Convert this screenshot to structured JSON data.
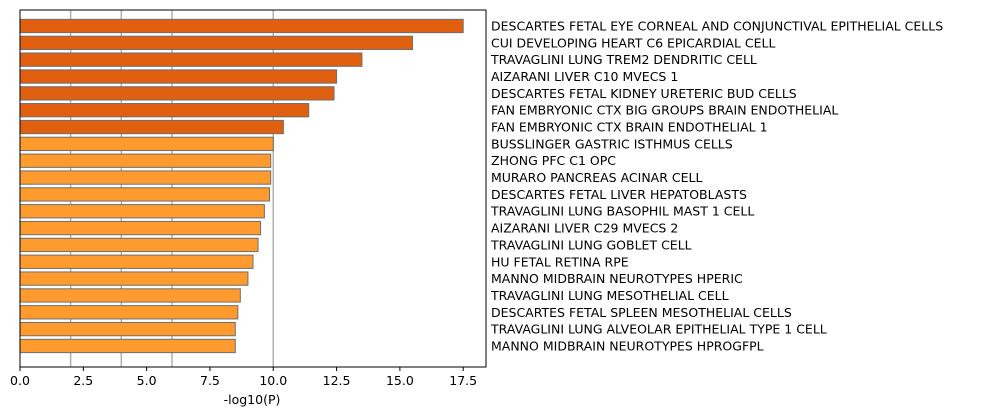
{
  "chart_data": {
    "type": "bar",
    "orientation": "horizontal",
    "xlabel": "-log10(P)",
    "ylabel": "",
    "xlim": [
      0,
      18.4
    ],
    "xticks": [
      0,
      2.5,
      5,
      7.5,
      10,
      12.5,
      15,
      17.5
    ],
    "xtick_labels": [
      "0.0",
      "2.5",
      "5.0",
      "7.5",
      "10.0",
      "12.5",
      "15.0",
      "17.5"
    ],
    "vertical_gridlines": [
      2,
      4,
      6,
      10
    ],
    "gridline_color": "#b0b0b0",
    "highlight_threshold": 10,
    "colors": {
      "strong": "#e0600f",
      "normal": "#ff9a2e",
      "edge": "#6e6e6e"
    },
    "categories": [
      "DESCARTES FETAL EYE CORNEAL AND CONJUNCTIVAL EPITHELIAL CELLS",
      "CUI DEVELOPING HEART C6 EPICARDIAL CELL",
      "TRAVAGLINI LUNG TREM2 DENDRITIC CELL",
      "AIZARANI LIVER C10 MVECS 1",
      "DESCARTES FETAL KIDNEY URETERIC BUD CELLS",
      "FAN EMBRYONIC CTX BIG GROUPS BRAIN ENDOTHELIAL",
      "FAN EMBRYONIC CTX BRAIN ENDOTHELIAL 1",
      "BUSSLINGER GASTRIC ISTHMUS CELLS",
      "ZHONG PFC C1 OPC",
      "MURARO PANCREAS ACINAR CELL",
      "DESCARTES FETAL LIVER HEPATOBLASTS",
      "TRAVAGLINI LUNG BASOPHIL MAST 1 CELL",
      "AIZARANI LIVER C29 MVECS 2",
      "TRAVAGLINI LUNG GOBLET CELL",
      "HU FETAL RETINA RPE",
      "MANNO MIDBRAIN NEUROTYPES HPERIC",
      "TRAVAGLINI LUNG MESOTHELIAL CELL",
      "DESCARTES FETAL SPLEEN MESOTHELIAL CELLS",
      "TRAVAGLINI LUNG ALVEOLAR EPITHELIAL TYPE 1 CELL",
      "MANNO MIDBRAIN NEUROTYPES HPROGFPL"
    ],
    "values": [
      17.5,
      15.5,
      13.5,
      12.5,
      12.4,
      11.4,
      10.4,
      10.0,
      9.9,
      9.9,
      9.85,
      9.65,
      9.5,
      9.4,
      9.2,
      9.0,
      8.7,
      8.6,
      8.5,
      8.5
    ]
  }
}
